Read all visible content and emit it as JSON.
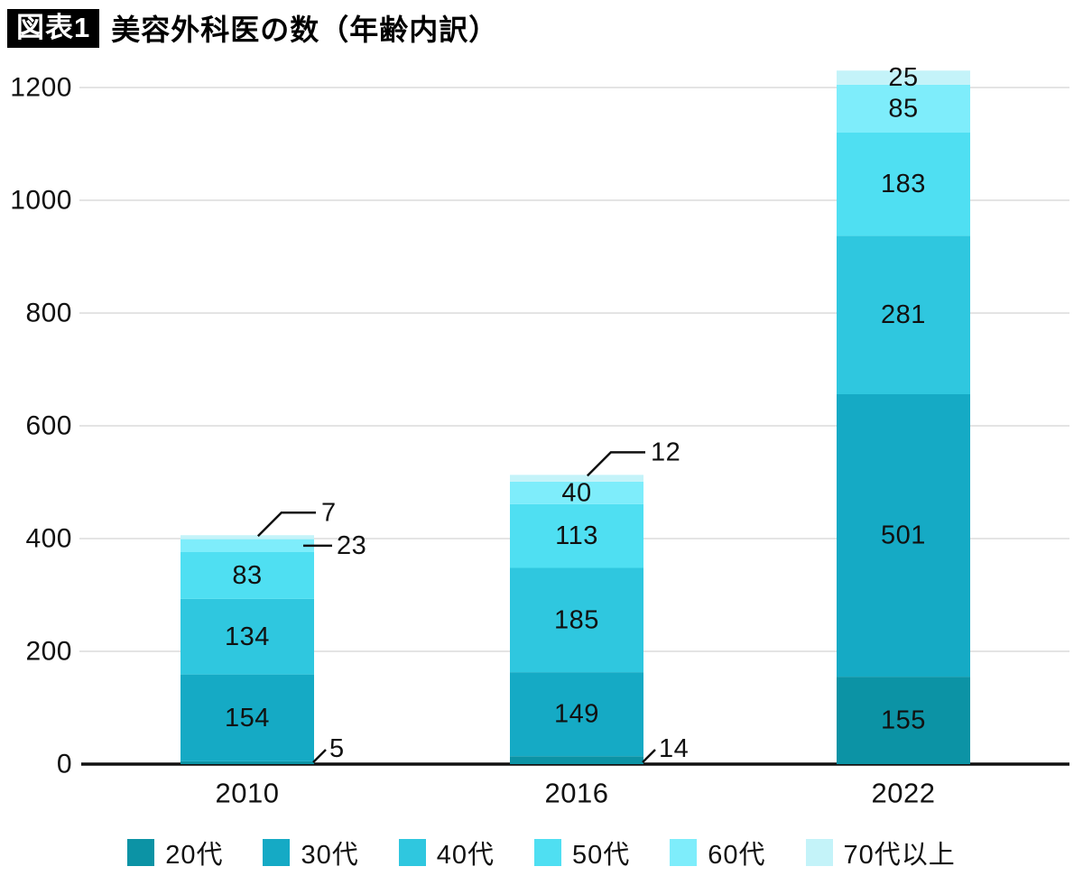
{
  "header": {
    "tag": "図表1",
    "title": "美容外科医の数（年齢内訳）"
  },
  "chart_data": {
    "type": "stacked-bar",
    "title": "美容外科医の数（年齢内訳）",
    "categories": [
      "2010",
      "2016",
      "2022"
    ],
    "series": [
      {
        "name": "20代",
        "color": "#0C93A5",
        "values": [
          5,
          14,
          155
        ]
      },
      {
        "name": "30代",
        "color": "#15AAC5",
        "values": [
          154,
          149,
          501
        ]
      },
      {
        "name": "40代",
        "color": "#2FC7DF",
        "values": [
          134,
          185,
          281
        ]
      },
      {
        "name": "50代",
        "color": "#4FDFF2",
        "values": [
          83,
          113,
          183
        ]
      },
      {
        "name": "60代",
        "color": "#7EEDFB",
        "values": [
          23,
          40,
          85
        ]
      },
      {
        "name": "70代以上",
        "color": "#C4F3F9",
        "values": [
          7,
          12,
          25
        ]
      }
    ],
    "ylim": [
      0,
      1200
    ],
    "yticks": [
      0,
      200,
      400,
      600,
      800,
      1000,
      1200
    ],
    "grid": true,
    "legend_position": "bottom",
    "external_labels": [
      {
        "category": "2010",
        "series": "70代以上",
        "side": "top"
      },
      {
        "category": "2010",
        "series": "60代",
        "side": "right"
      },
      {
        "category": "2010",
        "series": "20代",
        "side": "bottom"
      },
      {
        "category": "2016",
        "series": "70代以上",
        "side": "top"
      },
      {
        "category": "2016",
        "series": "20代",
        "side": "bottom"
      }
    ]
  },
  "colors": {
    "axis": "#111111",
    "gridline": "#e4e4e4",
    "text": "#111111",
    "title_bg": "#000000",
    "title_fg": "#ffffff"
  }
}
